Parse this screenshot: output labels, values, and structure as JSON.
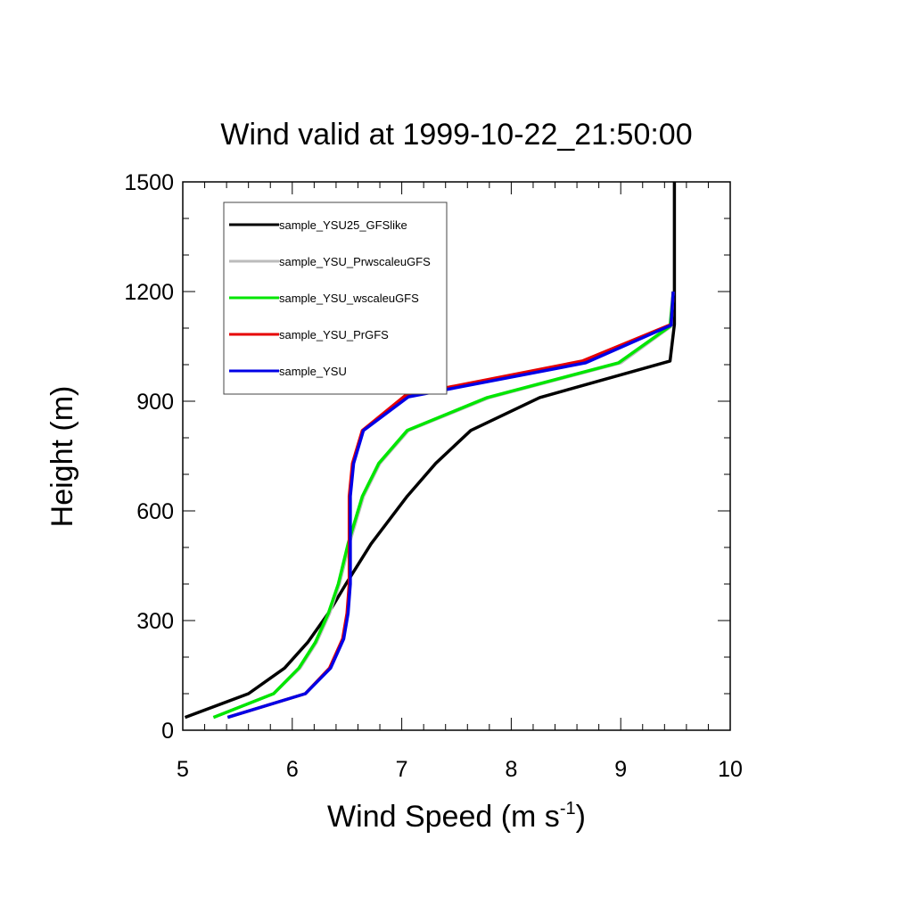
{
  "chart_data": {
    "type": "line",
    "title": "Wind valid at 1999-10-22_21:50:00",
    "xlabel": "Wind Speed (m s",
    "xlabel_sup": "-1",
    "xlabel_close": ")",
    "ylabel": "Height (m)",
    "xlim": [
      5,
      10
    ],
    "ylim": [
      0,
      1500
    ],
    "x_ticks": [
      5,
      6,
      7,
      8,
      9,
      10
    ],
    "y_ticks": [
      0,
      300,
      600,
      900,
      1200,
      1500
    ],
    "grid": false,
    "legend_placement": "top-left",
    "series": [
      {
        "name": "sample_YSU25_GFSlike",
        "color": "#000000",
        "points": [
          [
            5.02,
            35
          ],
          [
            5.6,
            100
          ],
          [
            5.93,
            170
          ],
          [
            6.14,
            240
          ],
          [
            6.33,
            320
          ],
          [
            6.49,
            400
          ],
          [
            6.72,
            510
          ],
          [
            7.05,
            640
          ],
          [
            7.31,
            730
          ],
          [
            7.63,
            820
          ],
          [
            8.26,
            910
          ],
          [
            9.45,
            1010
          ],
          [
            9.49,
            1110
          ],
          [
            9.49,
            1200
          ],
          [
            9.49,
            1500
          ]
        ]
      },
      {
        "name": "sample_YSU_PrwscaleuGFS",
        "color": "#bbbbbb",
        "points": [
          [
            5.28,
            35
          ],
          [
            5.83,
            100
          ],
          [
            6.07,
            170
          ],
          [
            6.22,
            240
          ],
          [
            6.34,
            320
          ],
          [
            6.43,
            400
          ],
          [
            6.52,
            510
          ],
          [
            6.65,
            640
          ],
          [
            6.8,
            730
          ],
          [
            7.06,
            820
          ],
          [
            7.8,
            910
          ],
          [
            9.0,
            1005
          ],
          [
            9.46,
            1105
          ],
          [
            9.48,
            1200
          ]
        ]
      },
      {
        "name": "sample_YSU_wscaleuGFS",
        "color": "#00e600",
        "points": [
          [
            5.28,
            35
          ],
          [
            5.83,
            100
          ],
          [
            6.06,
            170
          ],
          [
            6.21,
            240
          ],
          [
            6.33,
            320
          ],
          [
            6.42,
            400
          ],
          [
            6.51,
            510
          ],
          [
            6.64,
            640
          ],
          [
            6.79,
            730
          ],
          [
            7.05,
            820
          ],
          [
            7.78,
            910
          ],
          [
            8.98,
            1005
          ],
          [
            9.45,
            1105
          ],
          [
            9.48,
            1200
          ]
        ]
      },
      {
        "name": "sample_YSU_PrGFS",
        "color": "#e60000",
        "points": [
          [
            5.41,
            35
          ],
          [
            6.12,
            100
          ],
          [
            6.34,
            170
          ],
          [
            6.46,
            250
          ],
          [
            6.5,
            320
          ],
          [
            6.52,
            400
          ],
          [
            6.52,
            510
          ],
          [
            6.52,
            640
          ],
          [
            6.55,
            730
          ],
          [
            6.64,
            820
          ],
          [
            7.03,
            915
          ],
          [
            8.65,
            1010
          ],
          [
            9.46,
            1110
          ],
          [
            9.48,
            1200
          ]
        ]
      },
      {
        "name": "sample_YSU",
        "color": "#0000e6",
        "points": [
          [
            5.41,
            35
          ],
          [
            6.12,
            100
          ],
          [
            6.35,
            170
          ],
          [
            6.47,
            250
          ],
          [
            6.51,
            320
          ],
          [
            6.53,
            400
          ],
          [
            6.53,
            510
          ],
          [
            6.53,
            640
          ],
          [
            6.56,
            730
          ],
          [
            6.65,
            820
          ],
          [
            7.06,
            912
          ],
          [
            8.68,
            1005
          ],
          [
            9.46,
            1108
          ],
          [
            9.48,
            1200
          ]
        ]
      }
    ]
  }
}
